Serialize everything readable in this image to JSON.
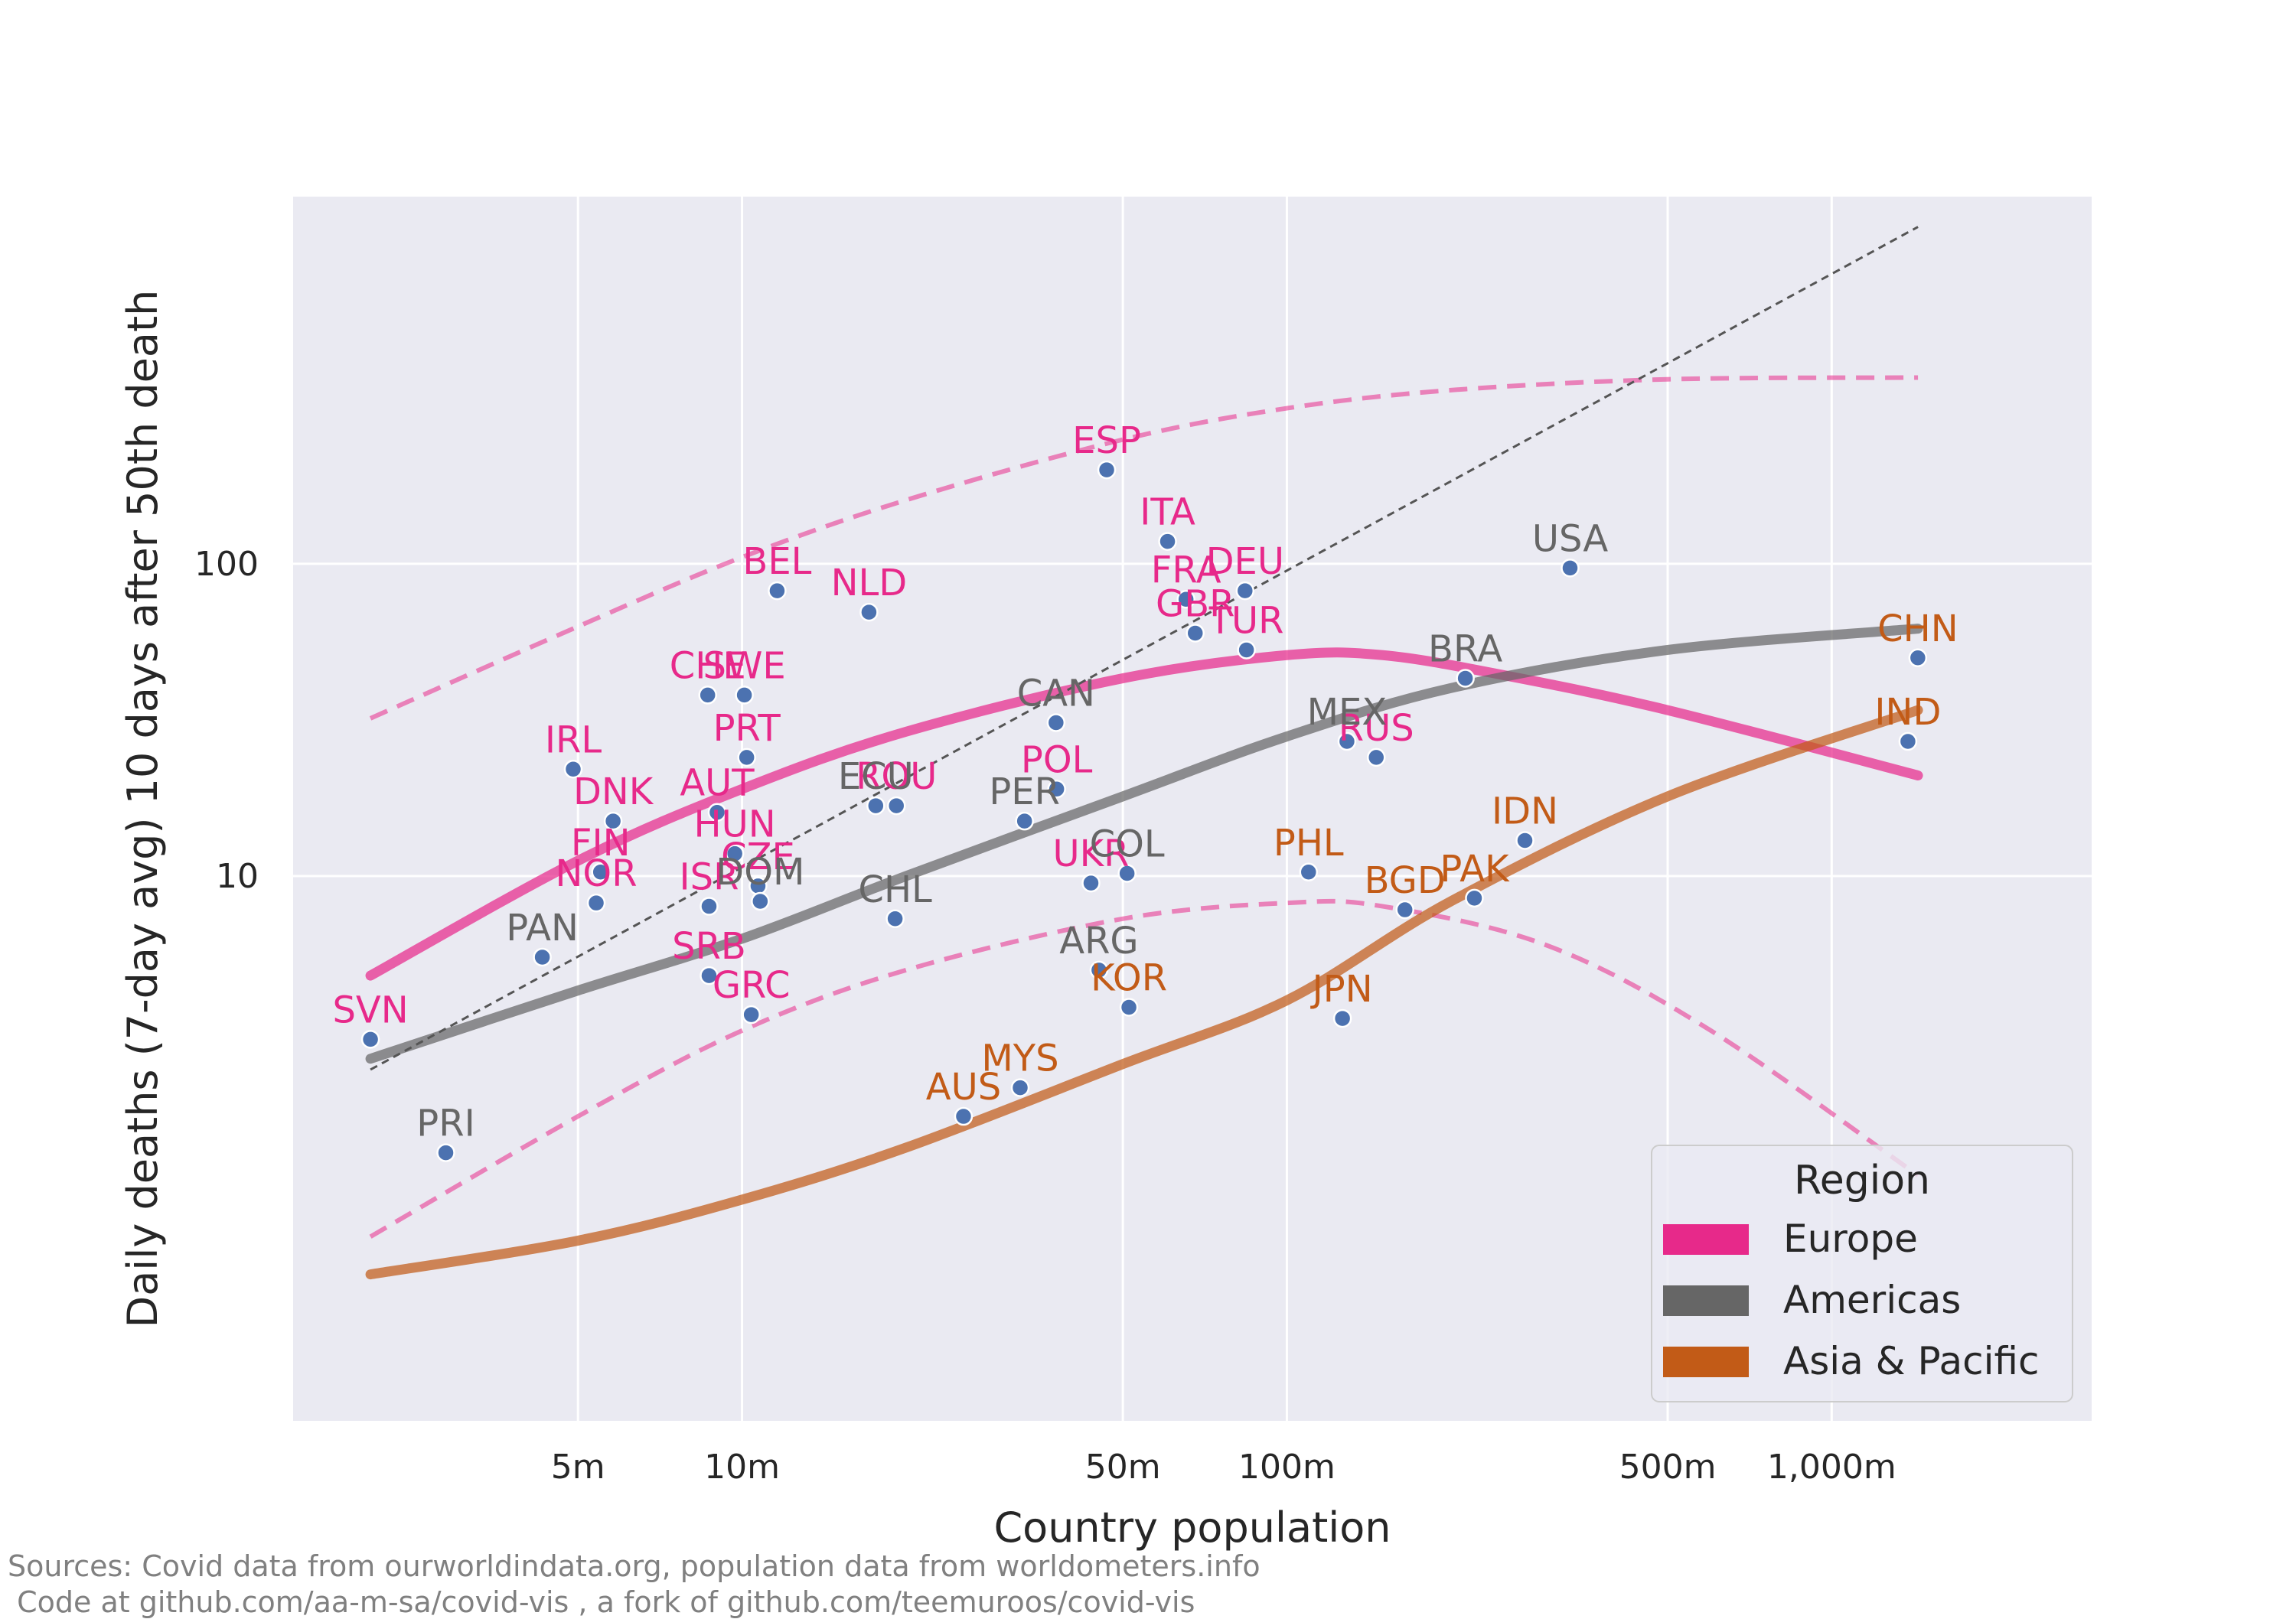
{
  "chart_data": {
    "type": "scatter",
    "title": "",
    "xlabel": "Country population",
    "ylabel": "Daily deaths (7-day avg) 10 days after 50th death",
    "x_scale": "log",
    "y_scale": "log",
    "xlim": [
      1500000,
      3000000000
    ],
    "ylim": [
      0.18,
      1500
    ],
    "x_ticks": [
      {
        "value": 5000000,
        "label": "5m"
      },
      {
        "value": 10000000,
        "label": "10m"
      },
      {
        "value": 50000000,
        "label": "50m"
      },
      {
        "value": 100000000,
        "label": "100m"
      },
      {
        "value": 500000000,
        "label": "500m"
      },
      {
        "value": 1000000000,
        "label": "1,000m"
      }
    ],
    "y_ticks": [
      {
        "value": 10,
        "label": "10"
      },
      {
        "value": 100,
        "label": "100"
      }
    ],
    "grid": true,
    "colors": {
      "Europe": "#e7298a",
      "Americas": "#666666",
      "Asia & Pacific": "#c25b17",
      "point": "#4c72b0",
      "plot_bg": "#eaeaf2"
    },
    "legend": {
      "title": "Region",
      "placement": "bottom-right",
      "entries": [
        "Europe",
        "Americas",
        "Asia & Pacific"
      ]
    },
    "points": [
      {
        "label": "SVN",
        "region": "Europe",
        "x": 2080000,
        "y": 3.0
      },
      {
        "label": "IRL",
        "region": "Europe",
        "x": 4900000,
        "y": 22
      },
      {
        "label": "DNK",
        "region": "Europe",
        "x": 5800000,
        "y": 15
      },
      {
        "label": "FIN",
        "region": "Europe",
        "x": 5500000,
        "y": 10.3
      },
      {
        "label": "NOR",
        "region": "Europe",
        "x": 5400000,
        "y": 8.2
      },
      {
        "label": "CHE",
        "region": "Europe",
        "x": 8650000,
        "y": 38
      },
      {
        "label": "SWE",
        "region": "Europe",
        "x": 10100000,
        "y": 38
      },
      {
        "label": "PRT",
        "region": "Europe",
        "x": 10200000,
        "y": 24
      },
      {
        "label": "AUT",
        "region": "Europe",
        "x": 9000000,
        "y": 16
      },
      {
        "label": "HUN",
        "region": "Europe",
        "x": 9700000,
        "y": 11.8
      },
      {
        "label": "CZE",
        "region": "Europe",
        "x": 10700000,
        "y": 9.3
      },
      {
        "label": "ISR",
        "region": "Europe",
        "x": 8700000,
        "y": 8.0
      },
      {
        "label": "SRB",
        "region": "Europe",
        "x": 8700000,
        "y": 4.8
      },
      {
        "label": "GRC",
        "region": "Europe",
        "x": 10400000,
        "y": 3.6
      },
      {
        "label": "BEL",
        "region": "Europe",
        "x": 11600000,
        "y": 82
      },
      {
        "label": "NLD",
        "region": "Europe",
        "x": 17100000,
        "y": 70
      },
      {
        "label": "ROU",
        "region": "Europe",
        "x": 19200000,
        "y": 16.8
      },
      {
        "label": "ESP",
        "region": "Europe",
        "x": 46700000,
        "y": 200
      },
      {
        "label": "ITA",
        "region": "Europe",
        "x": 60400000,
        "y": 118
      },
      {
        "label": "FRA",
        "region": "Europe",
        "x": 65300000,
        "y": 77
      },
      {
        "label": "GBR",
        "region": "Europe",
        "x": 67900000,
        "y": 60
      },
      {
        "label": "DEU",
        "region": "Europe",
        "x": 83800000,
        "y": 82
      },
      {
        "label": "TUR",
        "region": "Europe",
        "x": 84300000,
        "y": 53
      },
      {
        "label": "POL",
        "region": "Europe",
        "x": 37800000,
        "y": 19
      },
      {
        "label": "UKR",
        "region": "Europe",
        "x": 43700000,
        "y": 9.5
      },
      {
        "label": "RUS",
        "region": "Europe",
        "x": 145900000,
        "y": 24
      },
      {
        "label": "PRI",
        "region": "Americas",
        "x": 2860000,
        "y": 1.3
      },
      {
        "label": "PAN",
        "region": "Americas",
        "x": 4300000,
        "y": 5.5
      },
      {
        "label": "DOM",
        "region": "Americas",
        "x": 10800000,
        "y": 8.3
      },
      {
        "label": "ECU",
        "region": "Americas",
        "x": 17600000,
        "y": 16.8
      },
      {
        "label": "CHL",
        "region": "Americas",
        "x": 19100000,
        "y": 7.3
      },
      {
        "label": "PER",
        "region": "Americas",
        "x": 33000000,
        "y": 15
      },
      {
        "label": "CAN",
        "region": "Americas",
        "x": 37700000,
        "y": 31
      },
      {
        "label": "ARG",
        "region": "Americas",
        "x": 45200000,
        "y": 5.0
      },
      {
        "label": "COL",
        "region": "Americas",
        "x": 50900000,
        "y": 10.2
      },
      {
        "label": "MEX",
        "region": "Americas",
        "x": 128900000,
        "y": 27
      },
      {
        "label": "BRA",
        "region": "Americas",
        "x": 212600000,
        "y": 43
      },
      {
        "label": "USA",
        "region": "Americas",
        "x": 331000000,
        "y": 97
      },
      {
        "label": "AUS",
        "region": "Asia & Pacific",
        "x": 25500000,
        "y": 1.7
      },
      {
        "label": "MYS",
        "region": "Asia & Pacific",
        "x": 32400000,
        "y": 2.1
      },
      {
        "label": "KOR",
        "region": "Asia & Pacific",
        "x": 51300000,
        "y": 3.8
      },
      {
        "label": "PHL",
        "region": "Asia & Pacific",
        "x": 109600000,
        "y": 10.3
      },
      {
        "label": "JPN",
        "region": "Asia & Pacific",
        "x": 126500000,
        "y": 3.5
      },
      {
        "label": "BGD",
        "region": "Asia & Pacific",
        "x": 164700000,
        "y": 7.8
      },
      {
        "label": "PAK",
        "region": "Asia & Pacific",
        "x": 220900000,
        "y": 8.5
      },
      {
        "label": "IDN",
        "region": "Asia & Pacific",
        "x": 273500000,
        "y": 13
      },
      {
        "label": "IND",
        "region": "Asia & Pacific",
        "x": 1380000000,
        "y": 27
      },
      {
        "label": "CHN",
        "region": "Asia & Pacific",
        "x": 1439000000,
        "y": 50
      }
    ],
    "fits": [
      {
        "region": "Europe",
        "style": "solid",
        "points": [
          [
            2080000,
            4.8
          ],
          [
            5000000,
            11.2
          ],
          [
            10000000,
            19
          ],
          [
            20000000,
            29
          ],
          [
            50000000,
            43
          ],
          [
            100000000,
            51
          ],
          [
            150000000,
            51
          ],
          [
            250000000,
            44
          ],
          [
            500000000,
            34
          ],
          [
            1440000000,
            21
          ]
        ]
      },
      {
        "region": "Europe",
        "style": "dashed",
        "points": [
          [
            2080000,
            32
          ],
          [
            5000000,
            63
          ],
          [
            10000000,
            105
          ],
          [
            20000000,
            160
          ],
          [
            50000000,
            250
          ],
          [
            100000000,
            315
          ],
          [
            200000000,
            360
          ],
          [
            500000000,
            390
          ],
          [
            1440000000,
            395
          ]
        ]
      },
      {
        "region": "Europe",
        "style": "dashed",
        "points": [
          [
            2080000,
            0.7
          ],
          [
            5000000,
            1.7
          ],
          [
            10000000,
            3.2
          ],
          [
            20000000,
            5.0
          ],
          [
            50000000,
            7.3
          ],
          [
            100000000,
            8.2
          ],
          [
            150000000,
            8.0
          ],
          [
            300000000,
            6.0
          ],
          [
            600000000,
            3.2
          ],
          [
            1440000000,
            1.1
          ]
        ]
      },
      {
        "region": "Americas",
        "style": "solid",
        "points": [
          [
            2080000,
            2.6
          ],
          [
            5000000,
            4.3
          ],
          [
            10000000,
            6.3
          ],
          [
            20000000,
            10
          ],
          [
            50000000,
            18
          ],
          [
            100000000,
            28
          ],
          [
            200000000,
            40
          ],
          [
            500000000,
            53
          ],
          [
            1440000000,
            62
          ]
        ]
      },
      {
        "region": "Asia & Pacific",
        "style": "solid",
        "points": [
          [
            2080000,
            0.53
          ],
          [
            5000000,
            0.68
          ],
          [
            10000000,
            0.92
          ],
          [
            20000000,
            1.35
          ],
          [
            50000000,
            2.5
          ],
          [
            100000000,
            4.0
          ],
          [
            200000000,
            8.3
          ],
          [
            500000000,
            18
          ],
          [
            1440000000,
            34
          ]
        ]
      },
      {
        "region": "reference",
        "style": "dashed",
        "points": [
          [
            2080000,
            2.4
          ],
          [
            1440000000,
            1200
          ]
        ]
      }
    ]
  },
  "footer": {
    "line1": "Sources: Covid data from ourworldindata.org, population data from worldometers.info",
    "line2": " Code at github.com/aa-m-sa/covid-vis , a fork of github.com/teemuroos/covid-vis"
  }
}
